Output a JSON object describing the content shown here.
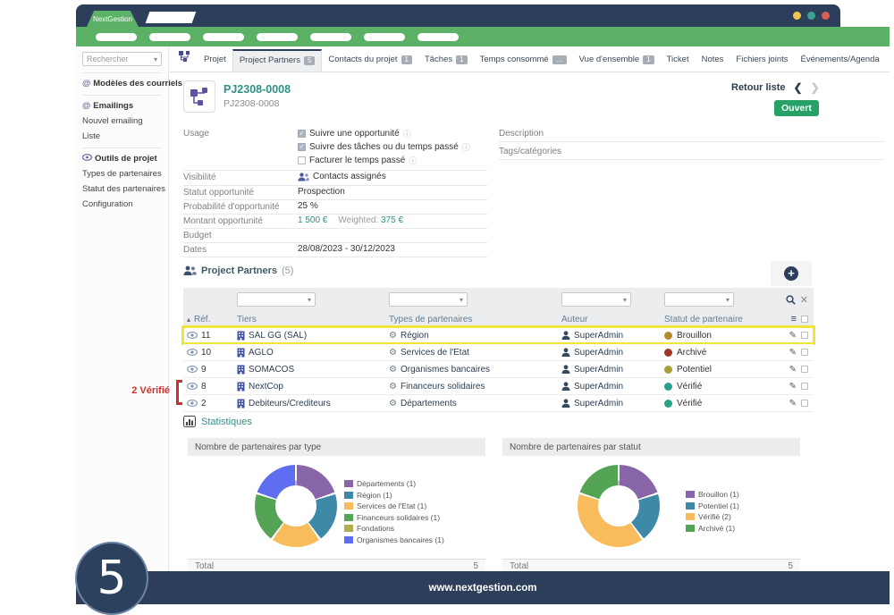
{
  "window": {
    "tab_label": "NextGestion",
    "footer_url": "www.nextgestion.com",
    "step_number": "5",
    "control_colors": [
      "#f0c64f",
      "#3ba293",
      "#d95f53"
    ]
  },
  "topnav": {
    "pill_count": 7
  },
  "sidebar": {
    "search_placeholder": "Rechercher",
    "groups": [
      {
        "items": [
          {
            "icon": "at-icon",
            "label": "Modèles des courriels",
            "bold": true
          }
        ]
      },
      {
        "items": [
          {
            "icon": "at-icon",
            "label": "Emailings",
            "bold": true
          },
          {
            "label": "Nouvel emailing"
          },
          {
            "label": "Liste"
          }
        ]
      },
      {
        "items": [
          {
            "icon": "project-tools-icon",
            "label": "Outils de projet",
            "bold": true
          },
          {
            "label": "Types de partenaires"
          },
          {
            "label": "Statut des partenaires"
          },
          {
            "label": "Configuration"
          }
        ]
      }
    ]
  },
  "tabs": [
    {
      "label": "Projet"
    },
    {
      "label": "Project Partners",
      "badge": "5",
      "active": true
    },
    {
      "label": "Contacts du projet",
      "badge": "1"
    },
    {
      "label": "Tâches",
      "badge": "1"
    },
    {
      "label": "Temps consommé",
      "badge": "…"
    },
    {
      "label": "Vue d'ensemble",
      "badge": "1"
    },
    {
      "label": "Ticket"
    },
    {
      "label": "Notes"
    },
    {
      "label": "Fichiers joints"
    },
    {
      "label": "Événements/Agenda"
    }
  ],
  "project": {
    "ref": "PJ2308-0008",
    "subref": "PJ2308-0008",
    "back_label": "Retour liste",
    "prev": "❮",
    "next": "❯",
    "status": "Ouvert"
  },
  "details": {
    "fields": [
      {
        "label": "Usage",
        "type": "checklist",
        "items": [
          {
            "label": "Suivre une opportunité",
            "checked": true
          },
          {
            "label": "Suivre des tâches ou du temps passé",
            "checked": true
          },
          {
            "label": "Facturer le temps passé",
            "checked": false
          }
        ]
      },
      {
        "label": "Visibilité",
        "type": "icontext",
        "icon": "users-icon",
        "value": "Contacts assignés"
      },
      {
        "label": "Statut opportunité",
        "type": "text",
        "value": "Prospection"
      },
      {
        "label": "Probabilité d'opportunité",
        "type": "text",
        "value": "25 %"
      },
      {
        "label": "Montant opportunité",
        "type": "amount",
        "value": "1 500 €",
        "weighted_label": "Weighted:",
        "weighted_value": "375 €"
      },
      {
        "label": "Budget",
        "type": "text",
        "value": ""
      },
      {
        "label": "Dates",
        "type": "text",
        "value": "28/08/2023 - 30/12/2023"
      }
    ],
    "right_fields": [
      {
        "label": "Description"
      },
      {
        "label": "Tags/catégories"
      }
    ]
  },
  "partners": {
    "title": "Project Partners",
    "count": "(5)",
    "columns": {
      "ref": "Réf.",
      "tiers": "Tiers",
      "type": "Types de partenaires",
      "auteur": "Auteur",
      "statut": "Statut de partenaire"
    },
    "rows": [
      {
        "ref": "11",
        "tiers": "SAL GG (SAL)",
        "type": "Région",
        "auteur": "SuperAdmin",
        "statut": "Brouillon",
        "statut_color": "#b38b2d",
        "highlighted": true
      },
      {
        "ref": "10",
        "tiers": "AGLO",
        "type": "Services de l'Etat",
        "auteur": "SuperAdmin",
        "statut": "Archivé",
        "statut_color": "#a23527"
      },
      {
        "ref": "9",
        "tiers": "SOMACOS",
        "type": "Organismes bancaires",
        "auteur": "SuperAdmin",
        "statut": "Potentiel",
        "statut_color": "#a8a037"
      },
      {
        "ref": "8",
        "tiers": "NextCop",
        "type": "Financeurs solidaires",
        "auteur": "SuperAdmin",
        "statut": "Vérifié",
        "statut_color": "#2aa187"
      },
      {
        "ref": "2",
        "tiers": "Debiteurs/Crediteurs",
        "type": "Départements",
        "auteur": "SuperAdmin",
        "statut": "Vérifié",
        "statut_color": "#2aa187"
      }
    ],
    "annotation": "2 Vérifié",
    "annotation_color": "#c9302c"
  },
  "stats": {
    "title": "Statistiques"
  },
  "chart_data": [
    {
      "type": "pie",
      "subtype": "donut",
      "title": "Nombre de partenaires par type",
      "labels": [
        "Départements (1)",
        "Région (1)",
        "Services de l'Etat (1)",
        "Financeurs solidaires (1)",
        "Fondations",
        "Organismes bancaires (1)"
      ],
      "values": [
        1,
        1,
        1,
        1,
        0,
        1
      ],
      "colors": [
        "#8765a8",
        "#3e89a8",
        "#f8bc5d",
        "#55a456",
        "#b2ae4e",
        "#5f6df0"
      ],
      "legend_position": "right",
      "total_label": "Total",
      "total": "5"
    },
    {
      "type": "pie",
      "subtype": "donut",
      "title": "Nombre de partenaires par statut",
      "labels": [
        "Brouillon (1)",
        "Potentiel (1)",
        "Vérifié (2)",
        "Archivé (1)"
      ],
      "values": [
        1,
        1,
        2,
        1
      ],
      "colors": [
        "#8765a8",
        "#3e89a8",
        "#f8bc5d",
        "#55a456"
      ],
      "legend_position": "right",
      "total_label": "Total",
      "total": "5"
    }
  ],
  "theme": {
    "navy": "#2c3e5a",
    "green": "#5bb166",
    "teal_accent": "#2e9287",
    "status_open_bg": "#28a168",
    "highlight_yellow": "#f2e53a"
  }
}
